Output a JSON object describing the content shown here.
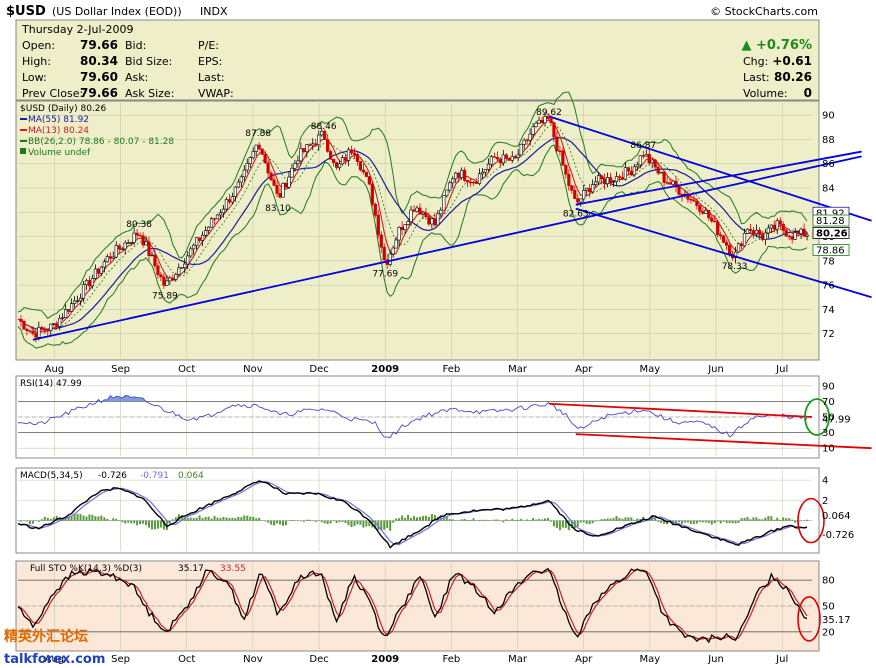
{
  "header": {
    "symbol": "$USD",
    "name": "(US Dollar Index (EOD))",
    "exchange": "INDX",
    "watermark": "© StockCharts.com",
    "date": "Thursday  2-Jul-2009"
  },
  "quote": {
    "open_label": "Open:",
    "open": "79.66",
    "high_label": "High:",
    "high": "80.34",
    "low_label": "Low:",
    "low": "79.60",
    "prevclose_label": "Prev Close:",
    "prevclose": "79.66",
    "bid_label": "Bid:",
    "bidsize_label": "Bid Size:",
    "ask_label": "Ask:",
    "asksize_label": "Ask Size:",
    "pe_label": "P/E:",
    "eps_label": "EPS:",
    "last_label": "Last:",
    "vwap_label": "VWAP:",
    "pct": "▲ +0.76%",
    "chg_label": "Chg:",
    "chg": "+0.61",
    "last2_label": "Last:",
    "last": "80.26",
    "volume_label": "Volume:",
    "volume": "0"
  },
  "colors": {
    "price_bg": "#eeeec8",
    "rsi_bg": "#ffffff",
    "sto_bg": "#fce8d8",
    "ma55": "#1c1c9c",
    "ma13": "#d02020",
    "bb": "#1f7a1f",
    "trend": "#0000e0",
    "red_trend": "#e00000",
    "up": "#000000",
    "down": "#d00000"
  },
  "chart_data": [
    {
      "type": "candlestick",
      "title": "$USD (Daily) 80.26",
      "legend": [
        {
          "name": "$USD (Daily) 80.26",
          "color": "#000000"
        },
        {
          "name": "MA(55) 81.92",
          "color": "#1c1c9c"
        },
        {
          "name": "MA(13) 80.24",
          "color": "#d02020"
        },
        {
          "name": "BB(26,2.0) 78.86 - 80.07 - 81.28",
          "color": "#1f7a1f"
        },
        {
          "name": "Volume undef",
          "color": "#1f7a1f"
        }
      ],
      "ylim": [
        70,
        91
      ],
      "yticks": [
        72,
        74,
        76,
        78,
        80,
        82,
        84,
        86,
        88,
        90
      ],
      "months": [
        "Aug",
        "Sep",
        "Oct",
        "Nov",
        "Dec",
        "2009",
        "Feb",
        "Mar",
        "Apr",
        "May",
        "Jun",
        "Jul"
      ],
      "keypoints": [
        {
          "t": 0,
          "v": 73.2
        },
        {
          "t": 15,
          "v": 72.0
        },
        {
          "t": 35,
          "v": 72.6
        },
        {
          "t": 60,
          "v": 75.0
        },
        {
          "t": 90,
          "v": 78.2
        },
        {
          "t": 122,
          "v": 80.38
        },
        {
          "t": 148,
          "v": 75.89
        },
        {
          "t": 180,
          "v": 79.5
        },
        {
          "t": 225,
          "v": 84.5
        },
        {
          "t": 242,
          "v": 87.88
        },
        {
          "t": 262,
          "v": 83.1
        },
        {
          "t": 282,
          "v": 86.6
        },
        {
          "t": 308,
          "v": 88.46
        },
        {
          "t": 320,
          "v": 85.4
        },
        {
          "t": 338,
          "v": 87.4
        },
        {
          "t": 355,
          "v": 83.8
        },
        {
          "t": 370,
          "v": 77.69
        },
        {
          "t": 384,
          "v": 80.5
        },
        {
          "t": 400,
          "v": 82.6
        },
        {
          "t": 420,
          "v": 81.0
        },
        {
          "t": 440,
          "v": 85.4
        },
        {
          "t": 460,
          "v": 84.6
        },
        {
          "t": 480,
          "v": 86.5
        },
        {
          "t": 500,
          "v": 86.2
        },
        {
          "t": 520,
          "v": 89.0
        },
        {
          "t": 535,
          "v": 89.62
        },
        {
          "t": 552,
          "v": 85.0
        },
        {
          "t": 562,
          "v": 82.63
        },
        {
          "t": 580,
          "v": 84.5
        },
        {
          "t": 600,
          "v": 84.8
        },
        {
          "t": 618,
          "v": 85.5
        },
        {
          "t": 630,
          "v": 86.87
        },
        {
          "t": 650,
          "v": 84.8
        },
        {
          "t": 672,
          "v": 83.5
        },
        {
          "t": 690,
          "v": 82.3
        },
        {
          "t": 710,
          "v": 79.9
        },
        {
          "t": 722,
          "v": 78.33
        },
        {
          "t": 735,
          "v": 80.8
        },
        {
          "t": 750,
          "v": 80.0
        },
        {
          "t": 765,
          "v": 80.9
        },
        {
          "t": 780,
          "v": 80.1
        },
        {
          "t": 795,
          "v": 80.26
        }
      ],
      "annotations": [
        {
          "t": 122,
          "v": 80.38,
          "label": "80.38",
          "pos": "above"
        },
        {
          "t": 148,
          "v": 75.89,
          "label": "75.89",
          "pos": "below"
        },
        {
          "t": 242,
          "v": 87.88,
          "label": "87.88",
          "pos": "above"
        },
        {
          "t": 262,
          "v": 83.1,
          "label": "83.10",
          "pos": "below"
        },
        {
          "t": 308,
          "v": 88.46,
          "label": "88.46",
          "pos": "above"
        },
        {
          "t": 370,
          "v": 77.69,
          "label": "77.69",
          "pos": "below"
        },
        {
          "t": 535,
          "v": 89.62,
          "label": "89.62",
          "pos": "above"
        },
        {
          "t": 562,
          "v": 82.63,
          "label": "82.63",
          "pos": "below"
        },
        {
          "t": 630,
          "v": 86.87,
          "label": "86.87",
          "pos": "above"
        },
        {
          "t": 722,
          "v": 78.33,
          "label": "78.33",
          "pos": "below"
        }
      ],
      "trendlines": [
        {
          "t1": 15,
          "v1": 71.5,
          "t2": 850,
          "v2": 86.6
        },
        {
          "t1": 562,
          "v1": 82.63,
          "t2": 850,
          "v2": 87.0
        },
        {
          "t1": 535,
          "v1": 89.9,
          "t2": 860,
          "v2": 81.3
        },
        {
          "t1": 562,
          "v1": 82.3,
          "t2": 860,
          "v2": 75.0
        }
      ],
      "right_labels": [
        {
          "v": 81.92,
          "label": "81.92",
          "style": "ma55"
        },
        {
          "v": 81.28,
          "label": "81.28",
          "style": "bb"
        },
        {
          "v": 80.26,
          "label": "80.26",
          "style": "last"
        },
        {
          "v": 78.86,
          "label": "78.86",
          "style": "bb"
        }
      ]
    },
    {
      "type": "line",
      "title": "RSI(14) 47.99",
      "ylim": [
        0,
        100
      ],
      "yticks": [
        10,
        30,
        50,
        70,
        90
      ],
      "levels": [
        30,
        70
      ],
      "last_label": "47.99",
      "keypoints": [
        {
          "t": 0,
          "v": 45
        },
        {
          "t": 20,
          "v": 40
        },
        {
          "t": 50,
          "v": 55
        },
        {
          "t": 80,
          "v": 70
        },
        {
          "t": 100,
          "v": 77
        },
        {
          "t": 125,
          "v": 72
        },
        {
          "t": 150,
          "v": 58
        },
        {
          "t": 170,
          "v": 48
        },
        {
          "t": 190,
          "v": 50
        },
        {
          "t": 215,
          "v": 66
        },
        {
          "t": 245,
          "v": 64
        },
        {
          "t": 265,
          "v": 52
        },
        {
          "t": 290,
          "v": 58
        },
        {
          "t": 310,
          "v": 60
        },
        {
          "t": 335,
          "v": 48
        },
        {
          "t": 360,
          "v": 42
        },
        {
          "t": 372,
          "v": 22
        },
        {
          "t": 390,
          "v": 40
        },
        {
          "t": 410,
          "v": 52
        },
        {
          "t": 440,
          "v": 60
        },
        {
          "t": 470,
          "v": 56
        },
        {
          "t": 500,
          "v": 60
        },
        {
          "t": 535,
          "v": 67
        },
        {
          "t": 550,
          "v": 55
        },
        {
          "t": 565,
          "v": 33
        },
        {
          "t": 590,
          "v": 50
        },
        {
          "t": 630,
          "v": 60
        },
        {
          "t": 660,
          "v": 44
        },
        {
          "t": 690,
          "v": 42
        },
        {
          "t": 718,
          "v": 26
        },
        {
          "t": 740,
          "v": 50
        },
        {
          "t": 770,
          "v": 52
        },
        {
          "t": 795,
          "v": 48
        }
      ],
      "trendlines": [
        {
          "t1": 535,
          "v1": 67,
          "t2": 800,
          "v2": 50
        },
        {
          "t1": 562,
          "v1": 28,
          "t2": 860,
          "v2": 10
        }
      ]
    },
    {
      "type": "line",
      "title": "MACD(5,34,5) -0.726, -0.791, 0.064",
      "series": [
        {
          "name": "-0.726",
          "color": "#000000"
        },
        {
          "name": "-0.791",
          "color": "#7070e0"
        },
        {
          "name": "0.064",
          "color": "#3a8a1a"
        }
      ],
      "ylim": [
        -3,
        5
      ],
      "yticks": [
        2,
        4
      ],
      "value_labels": [
        {
          "v": 0.064,
          "label": "0.064"
        },
        {
          "v": -0.726,
          "label": "-0.726"
        }
      ],
      "keypoints": [
        {
          "t": 0,
          "v": -0.3
        },
        {
          "t": 20,
          "v": -0.8
        },
        {
          "t": 50,
          "v": 0.5
        },
        {
          "t": 80,
          "v": 2.8
        },
        {
          "t": 100,
          "v": 3.2
        },
        {
          "t": 125,
          "v": 2.3
        },
        {
          "t": 150,
          "v": -0.5
        },
        {
          "t": 175,
          "v": 0.8
        },
        {
          "t": 215,
          "v": 2.6
        },
        {
          "t": 245,
          "v": 4.0
        },
        {
          "t": 270,
          "v": 2.6
        },
        {
          "t": 300,
          "v": 2.7
        },
        {
          "t": 330,
          "v": 1.8
        },
        {
          "t": 355,
          "v": 0.0
        },
        {
          "t": 375,
          "v": -2.6
        },
        {
          "t": 400,
          "v": -1.2
        },
        {
          "t": 430,
          "v": 0.6
        },
        {
          "t": 460,
          "v": 1.0
        },
        {
          "t": 500,
          "v": 1.2
        },
        {
          "t": 535,
          "v": 2.0
        },
        {
          "t": 560,
          "v": -0.8
        },
        {
          "t": 580,
          "v": -1.6
        },
        {
          "t": 610,
          "v": -0.6
        },
        {
          "t": 640,
          "v": 0.4
        },
        {
          "t": 670,
          "v": -0.6
        },
        {
          "t": 700,
          "v": -1.6
        },
        {
          "t": 725,
          "v": -2.4
        },
        {
          "t": 750,
          "v": -1.4
        },
        {
          "t": 775,
          "v": -0.5
        },
        {
          "t": 795,
          "v": -0.73
        }
      ]
    },
    {
      "type": "line",
      "title": "Full STO %K(14,3) %D(3) 35.17, 33.55",
      "series": [
        {
          "name": "35.17",
          "color": "#000000"
        },
        {
          "name": "33.55",
          "color": "#d02020"
        }
      ],
      "ylim": [
        0,
        100
      ],
      "yticks": [
        20,
        50,
        80
      ],
      "levels": [
        20,
        80
      ],
      "last_label": "35.17",
      "keypoints": [
        {
          "t": 0,
          "v": 50
        },
        {
          "t": 15,
          "v": 25
        },
        {
          "t": 35,
          "v": 65
        },
        {
          "t": 55,
          "v": 88
        },
        {
          "t": 75,
          "v": 90
        },
        {
          "t": 95,
          "v": 85
        },
        {
          "t": 115,
          "v": 75
        },
        {
          "t": 130,
          "v": 45
        },
        {
          "t": 150,
          "v": 20
        },
        {
          "t": 170,
          "v": 50
        },
        {
          "t": 190,
          "v": 90
        },
        {
          "t": 210,
          "v": 80
        },
        {
          "t": 228,
          "v": 35
        },
        {
          "t": 245,
          "v": 90
        },
        {
          "t": 262,
          "v": 40
        },
        {
          "t": 285,
          "v": 85
        },
        {
          "t": 305,
          "v": 90
        },
        {
          "t": 320,
          "v": 30
        },
        {
          "t": 338,
          "v": 85
        },
        {
          "t": 355,
          "v": 55
        },
        {
          "t": 368,
          "v": 12
        },
        {
          "t": 390,
          "v": 55
        },
        {
          "t": 405,
          "v": 85
        },
        {
          "t": 420,
          "v": 35
        },
        {
          "t": 440,
          "v": 90
        },
        {
          "t": 460,
          "v": 70
        },
        {
          "t": 480,
          "v": 45
        },
        {
          "t": 500,
          "v": 70
        },
        {
          "t": 520,
          "v": 92
        },
        {
          "t": 535,
          "v": 90
        },
        {
          "t": 550,
          "v": 45
        },
        {
          "t": 562,
          "v": 12
        },
        {
          "t": 580,
          "v": 55
        },
        {
          "t": 600,
          "v": 75
        },
        {
          "t": 620,
          "v": 92
        },
        {
          "t": 635,
          "v": 88
        },
        {
          "t": 650,
          "v": 40
        },
        {
          "t": 670,
          "v": 15
        },
        {
          "t": 690,
          "v": 10
        },
        {
          "t": 710,
          "v": 15
        },
        {
          "t": 725,
          "v": 12
        },
        {
          "t": 745,
          "v": 65
        },
        {
          "t": 760,
          "v": 85
        },
        {
          "t": 775,
          "v": 70
        },
        {
          "t": 795,
          "v": 35
        }
      ]
    }
  ],
  "watermark_bottom": {
    "cn": "精英外汇论坛",
    "en": "talkforex.com"
  }
}
